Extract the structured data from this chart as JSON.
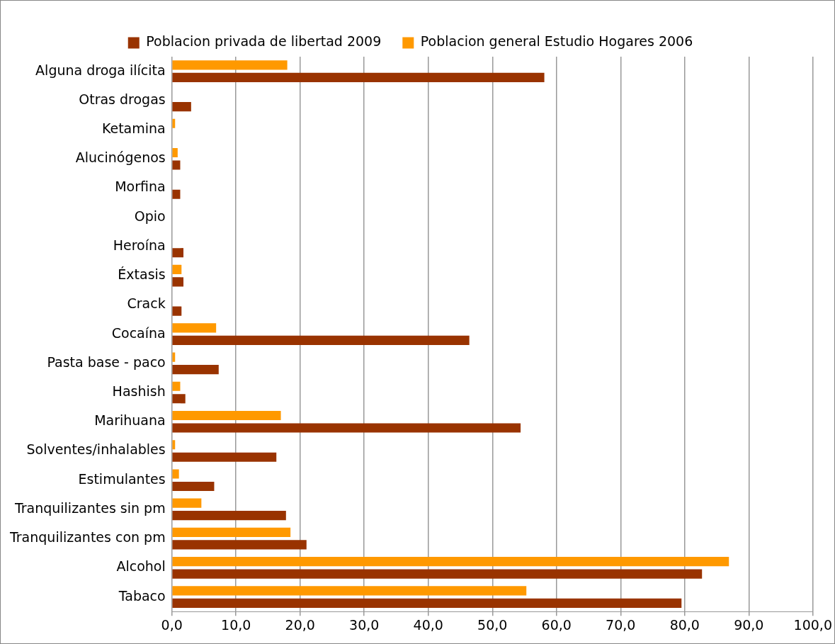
{
  "chart_data": {
    "type": "bar",
    "orientation": "horizontal",
    "categories": [
      "Alguna droga ilícita",
      "Otras drogas",
      "Ketamina",
      "Alucinógenos",
      "Morfina",
      "Opio",
      "Heroína",
      "Éxtasis",
      "Crack",
      "Cocaína",
      "Pasta base - paco",
      "Hashish",
      "Marihuana",
      "Solventes/inhalables",
      "Estimulantes",
      "Tranquilizantes sin pm",
      "Tranquilizantes con pm",
      "Alcohol",
      "Tabaco"
    ],
    "series": [
      {
        "name": "Poblacion general Estudio Hogares 2006",
        "color": "#ff9900",
        "values": [
          18.0,
          null,
          0.5,
          0.9,
          null,
          null,
          null,
          1.5,
          null,
          6.9,
          0.5,
          1.3,
          17.0,
          0.5,
          1.1,
          4.6,
          18.5,
          86.9,
          55.3
        ]
      },
      {
        "name": "Poblacion privada de libertad 2009",
        "color": "#993300",
        "values": [
          58.1,
          3.0,
          null,
          1.3,
          1.3,
          null,
          1.8,
          1.8,
          1.5,
          46.4,
          7.3,
          2.1,
          54.4,
          16.3,
          6.6,
          17.8,
          21.0,
          82.7,
          79.5
        ]
      }
    ],
    "xlim": [
      0,
      100
    ],
    "xticks": [
      {
        "value": 0,
        "label": "0,0"
      },
      {
        "value": 10,
        "label": "10,0"
      },
      {
        "value": 20,
        "label": "20,0"
      },
      {
        "value": 30,
        "label": "30,0"
      },
      {
        "value": 40,
        "label": "40,0"
      },
      {
        "value": 50,
        "label": "50,0"
      },
      {
        "value": 60,
        "label": "60,0"
      },
      {
        "value": 70,
        "label": "70,0"
      },
      {
        "value": 80,
        "label": "80,0"
      },
      {
        "value": 90,
        "label": "90,0"
      },
      {
        "value": 100,
        "label": "100,0"
      }
    ],
    "grid": "x",
    "legend": "top"
  }
}
